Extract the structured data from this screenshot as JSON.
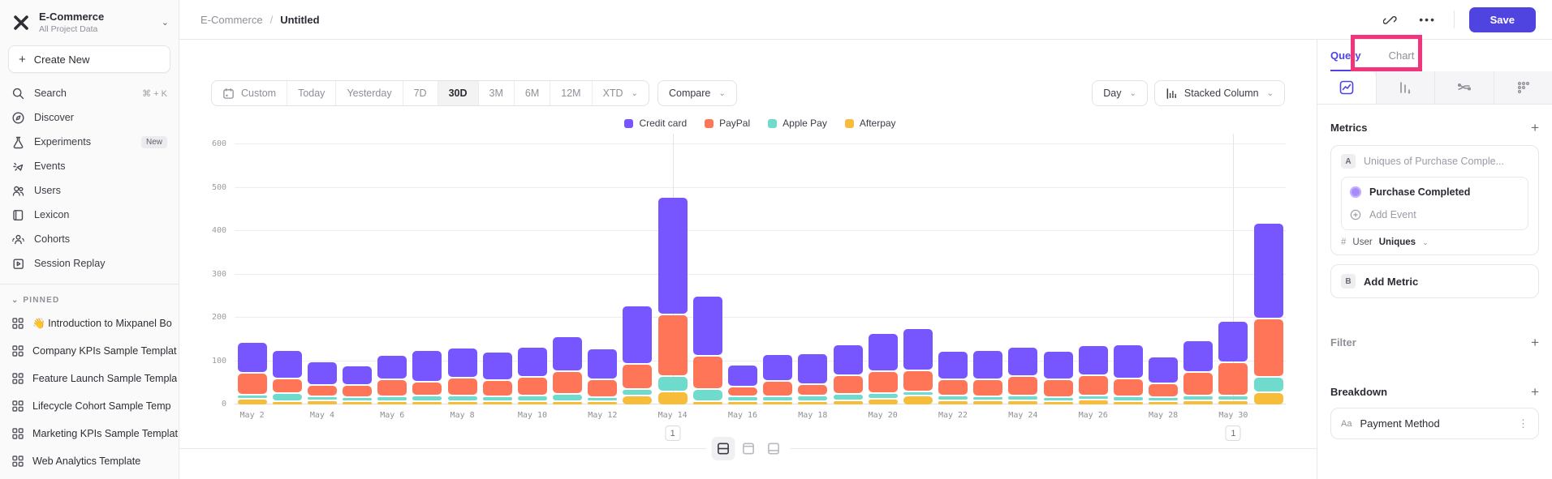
{
  "colors": {
    "accent": "#4f44e0",
    "annotation_highlight": "#f0357c",
    "series": {
      "credit_card": "#7856ff",
      "paypal": "#ff7557",
      "apple_pay": "#6fdbcc",
      "afterpay": "#f8bc3b"
    }
  },
  "sidebar": {
    "project_name": "E-Commerce",
    "project_scope": "All Project Data",
    "create_new_label": "Create New",
    "nav_items": [
      {
        "label": "Search",
        "icon": "search-icon",
        "right": "⌘ + K"
      },
      {
        "label": "Discover",
        "icon": "discover-icon"
      },
      {
        "label": "Experiments",
        "icon": "experiments-icon",
        "badge": "New"
      },
      {
        "label": "Events",
        "icon": "events-icon"
      },
      {
        "label": "Users",
        "icon": "users-icon"
      },
      {
        "label": "Lexicon",
        "icon": "lexicon-icon"
      },
      {
        "label": "Cohorts",
        "icon": "cohorts-icon"
      },
      {
        "label": "Session Replay",
        "icon": "session-replay-icon"
      }
    ],
    "pinned_header": "PINNED",
    "pinned_items": [
      "👋 Introduction to Mixpanel Bo",
      "Company KPIs Sample Templat",
      "Feature Launch Sample Templa",
      "Lifecycle Cohort Sample Temp",
      "Marketing KPIs Sample Templat",
      "Web Analytics Template"
    ]
  },
  "header": {
    "breadcrumb_project": "E-Commerce",
    "breadcrumb_separator": "/",
    "breadcrumb_title": "Untitled",
    "save_label": "Save"
  },
  "toolbar": {
    "date_ranges": [
      "Custom",
      "Today",
      "Yesterday",
      "7D",
      "30D",
      "3M",
      "6M",
      "12M",
      "XTD"
    ],
    "active_range": "30D",
    "compare_label": "Compare",
    "granularity_label": "Day",
    "chart_type_label": "Stacked Column"
  },
  "right_panel": {
    "tabs": [
      {
        "label": "Query"
      },
      {
        "label": "Chart"
      }
    ],
    "active_tab": "Query",
    "metrics_header": "Metrics",
    "metric_a": {
      "badge": "A",
      "placeholder": "Uniques of Purchase Comple...",
      "event_name": "Purchase Completed",
      "add_event_label": "Add Event",
      "aggregation_hash": "#",
      "aggregation_entity": "User",
      "aggregation_value": "Uniques"
    },
    "metric_b": {
      "badge": "B",
      "label": "Add Metric"
    },
    "filter_header": "Filter",
    "breakdown_header": "Breakdown",
    "breakdown_item": {
      "badge": "Aa",
      "label": "Payment Method"
    }
  },
  "chart_data": {
    "type": "bar",
    "stacked": true,
    "title": "",
    "xlabel": "",
    "ylabel": "",
    "ylim": [
      0,
      600
    ],
    "yticks": [
      0,
      100,
      200,
      300,
      400,
      500,
      600
    ],
    "grid": "horizontal",
    "legend_position": "top-center",
    "x": [
      "May 2",
      "May 3",
      "May 4",
      "May 5",
      "May 6",
      "May 7",
      "May 8",
      "May 9",
      "May 10",
      "May 11",
      "May 12",
      "May 13",
      "May 14",
      "May 15",
      "May 16",
      "May 17",
      "May 18",
      "May 19",
      "May 20",
      "May 21",
      "May 22",
      "May 23",
      "May 24",
      "May 25",
      "May 26",
      "May 27",
      "May 28",
      "May 29",
      "May 30",
      "May 31"
    ],
    "x_tick_every": 2,
    "series": [
      {
        "name": "Credit card",
        "color": "#7856ff",
        "values": [
          70,
          64,
          54,
          45,
          56,
          72,
          69,
          65,
          69,
          80,
          71,
          134,
          270,
          138,
          50,
          60,
          71,
          71,
          89,
          97,
          65,
          68,
          67,
          66,
          70,
          79,
          60,
          73,
          95,
          220
        ]
      },
      {
        "name": "PayPal",
        "color": "#ff7557",
        "values": [
          50,
          35,
          26,
          27,
          40,
          33,
          40,
          38,
          42,
          54,
          42,
          58,
          142,
          77,
          23,
          37,
          27,
          44,
          50,
          49,
          37,
          39,
          46,
          40,
          45,
          40,
          32,
          55,
          78,
          135
        ]
      },
      {
        "name": "Apple Pay",
        "color": "#6fdbcc",
        "values": [
          10,
          18,
          8,
          10,
          10,
          12,
          14,
          10,
          14,
          16,
          6,
          16,
          36,
          28,
          11,
          10,
          13,
          14,
          13,
          10,
          11,
          9,
          11,
          8,
          6,
          12,
          10,
          10,
          10,
          35
        ]
      },
      {
        "name": "Afterpay",
        "color": "#f8bc3b",
        "values": [
          15,
          6,
          12,
          8,
          10,
          10,
          8,
          10,
          6,
          8,
          4,
          22,
          32,
          9,
          9,
          10,
          9,
          12,
          15,
          22,
          12,
          11,
          11,
          10,
          14,
          4,
          8,
          12,
          12,
          30
        ]
      }
    ],
    "stack_order_bottom_to_top": [
      "Afterpay",
      "Apple Pay",
      "PayPal",
      "Credit card"
    ],
    "annotations": [
      {
        "x": "May 14",
        "label": "1"
      },
      {
        "x": "May 30",
        "label": "1"
      }
    ]
  }
}
